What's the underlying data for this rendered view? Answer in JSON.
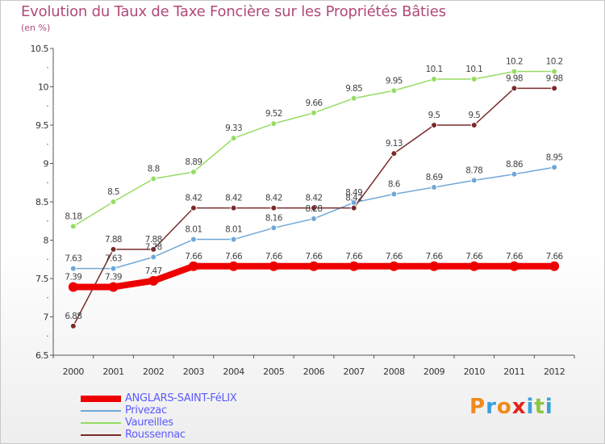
{
  "header": {
    "title": "Evolution du Taux de Taxe Foncière sur les Propriétés Bâties",
    "unit": "(en %)"
  },
  "logo": {
    "letters": [
      "P",
      "r",
      "o",
      "x",
      "i",
      "t",
      "i"
    ],
    "colors": [
      "#f08a1c",
      "#3aa0dc",
      "#f08a1c",
      "#e2231a",
      "#3aa0dc",
      "#8cc63f",
      "#3aa0dc"
    ]
  },
  "chart_data": {
    "type": "line",
    "categories": [
      "2000",
      "2001",
      "2002",
      "2003",
      "2004",
      "2005",
      "2006",
      "2007",
      "2008",
      "2009",
      "2010",
      "2011",
      "2012"
    ],
    "ylim": [
      6.5,
      10.5
    ],
    "yticks": [
      "6.5",
      "7",
      "7.5",
      "8",
      "8.5",
      "9",
      "9.5",
      "10",
      "10.5"
    ],
    "grid": false,
    "legend_position": "bottom-left",
    "series": [
      {
        "name": "ANGLARS-SAINT-FéLIX",
        "color": "#ee0000",
        "width": 8,
        "values": [
          7.39,
          7.39,
          7.47,
          7.66,
          7.66,
          7.66,
          7.66,
          7.66,
          7.66,
          7.66,
          7.66,
          7.66,
          7.66
        ],
        "labels": [
          "7.39",
          "7.39",
          "7.47",
          "7.66",
          "7.66",
          "7.66",
          "7.66",
          "7.66",
          "7.66",
          "7.66",
          "7.66",
          "7.66",
          "7.66"
        ]
      },
      {
        "name": "Privezac",
        "color": "#6fa8d8",
        "width": 1.5,
        "values": [
          7.63,
          7.63,
          7.78,
          8.01,
          8.01,
          8.16,
          8.28,
          8.49,
          8.6,
          8.69,
          8.78,
          8.86,
          8.95
        ],
        "labels": [
          "7.63",
          "7.63",
          "7.78",
          "8.01",
          "8.01",
          "8.16",
          "8.28",
          "8.49",
          "8.6",
          "8.69",
          "8.78",
          "8.86",
          "8.95"
        ]
      },
      {
        "name": "Vaureilles",
        "color": "#96dc64",
        "width": 1.5,
        "values": [
          8.18,
          8.5,
          8.8,
          8.89,
          9.33,
          9.52,
          9.66,
          9.85,
          9.95,
          10.1,
          10.1,
          10.2,
          10.2
        ],
        "labels": [
          "8.18",
          "8.5",
          "8.8",
          "8.89",
          "9.33",
          "9.52",
          "9.66",
          "9.85",
          "9.95",
          "10.1",
          "10.1",
          "10.2",
          "10.2"
        ]
      },
      {
        "name": "Roussennac",
        "color": "#7a2a2a",
        "width": 1.5,
        "values": [
          6.88,
          7.88,
          7.88,
          8.42,
          8.42,
          8.42,
          8.42,
          8.42,
          9.13,
          9.5,
          9.5,
          9.98,
          9.98
        ],
        "labels": [
          "6.88",
          "7.88",
          "7.88",
          "8.42",
          "8.42",
          "8.42",
          "8.42",
          "8.42",
          "9.13",
          "9.5",
          "9.5",
          "9.98",
          "9.98"
        ]
      }
    ]
  }
}
